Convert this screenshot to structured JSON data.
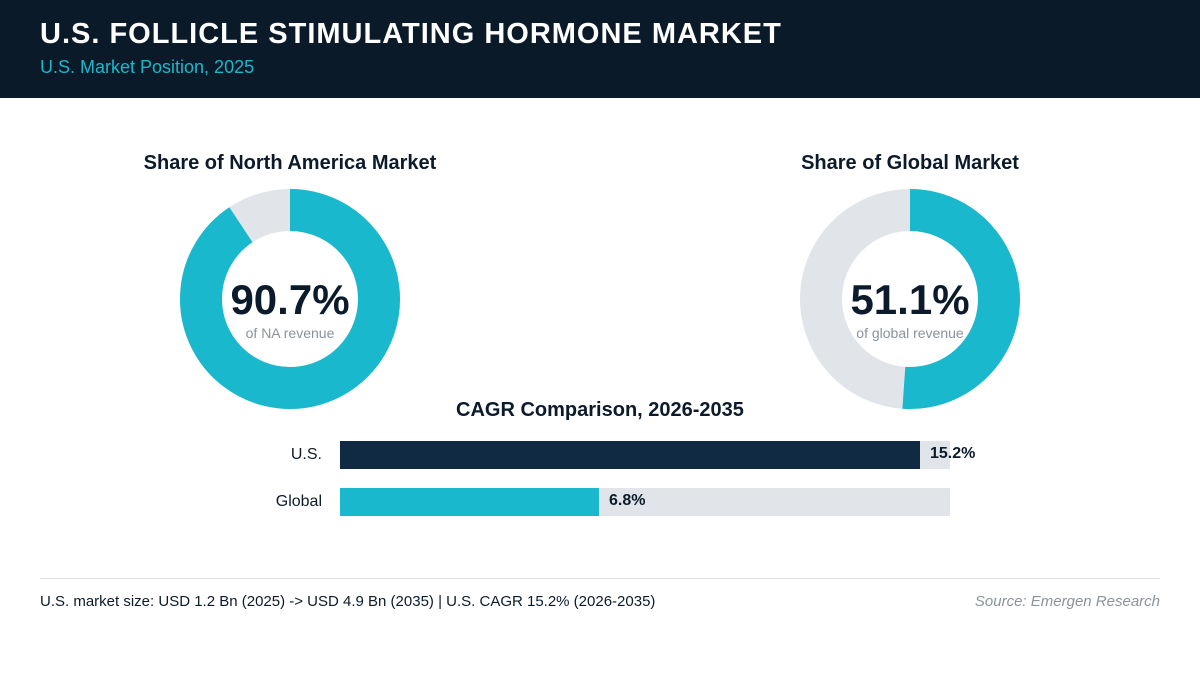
{
  "header": {
    "title": "U.S. FOLLICLE STIMULATING HORMONE MARKET",
    "subtitle": "U.S. Market Position, 2025"
  },
  "colors": {
    "header_bg": "#0a1a29",
    "accent": "#1ab8cc",
    "dark_bar": "#0f2a42",
    "track": "#e1e5ea"
  },
  "chart_data": [
    {
      "type": "pie",
      "title": "Share of North America Market",
      "center_value": "90.7%",
      "center_caption": "of NA revenue",
      "value": 90.7,
      "unit": "%"
    },
    {
      "type": "pie",
      "title": "Share of Global Market",
      "center_value": "51.1%",
      "center_caption": "of global revenue",
      "value": 51.1,
      "unit": "%"
    },
    {
      "type": "bar",
      "orientation": "horizontal",
      "title": "CAGR Comparison, 2026-2035",
      "categories": [
        "U.S.",
        "Global"
      ],
      "values": [
        15.2,
        6.8
      ],
      "value_labels": [
        "15.2%",
        "6.8%"
      ],
      "xlim": [
        0,
        16.0
      ]
    }
  ],
  "footer": {
    "note": "U.S. market size: USD 1.2 Bn (2025) -> USD 4.9 Bn (2035)  |  U.S. CAGR 15.2% (2026-2035)",
    "source": "Source: Emergen Research"
  }
}
